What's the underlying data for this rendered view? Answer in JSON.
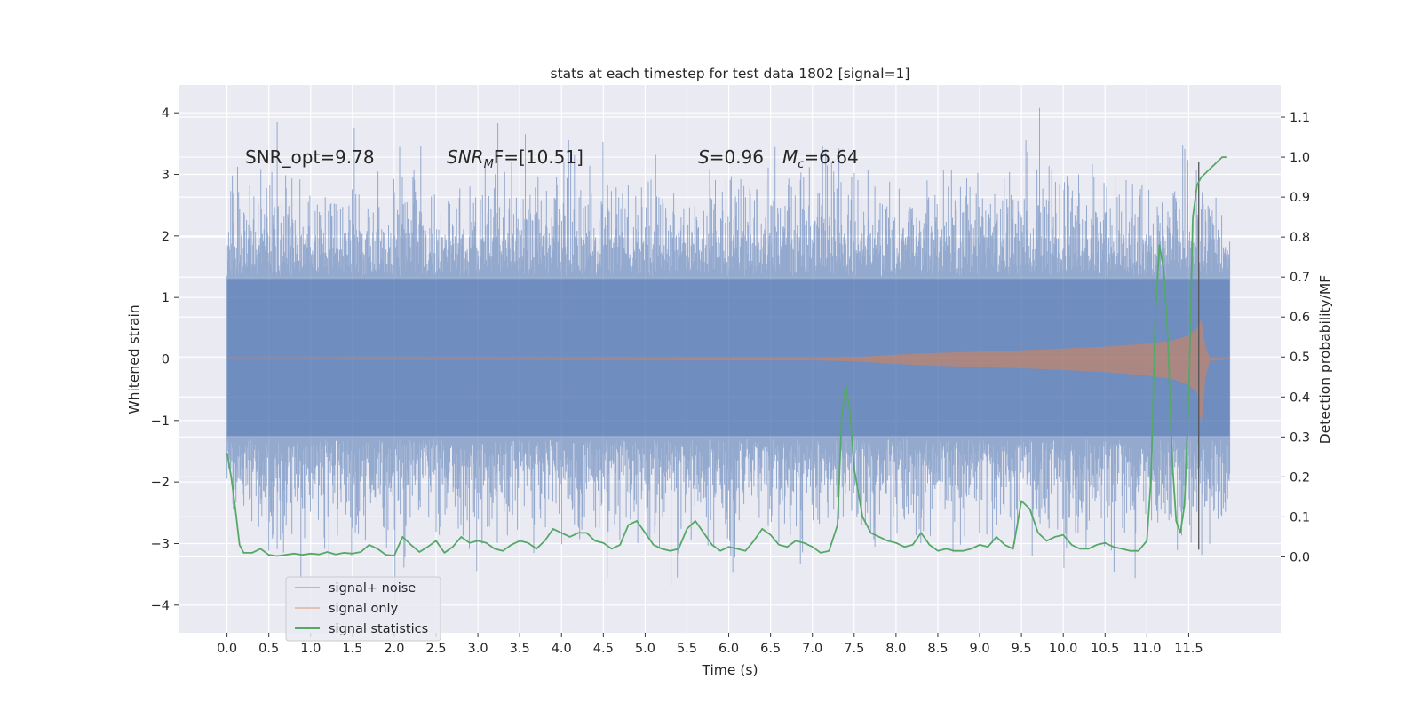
{
  "chart_data": {
    "type": "line",
    "title": "stats at each timestep for test data 1802 [signal=1]",
    "xlabel": "Time (s)",
    "ylabel": "Whitened strain",
    "y2label": "Detection probability/MF",
    "xlim": [
      -0.58,
      12.6
    ],
    "ylim": [
      -4.45,
      4.45
    ],
    "y2lim": [
      -0.19,
      1.18
    ],
    "x_ticks": [
      0.0,
      0.5,
      1.0,
      1.5,
      2.0,
      2.5,
      3.0,
      3.5,
      4.0,
      4.5,
      5.0,
      5.5,
      6.0,
      6.5,
      7.0,
      7.5,
      8.0,
      8.5,
      9.0,
      9.5,
      10.0,
      10.5,
      11.0,
      11.5
    ],
    "x_tick_labels": [
      "0.0",
      "0.5",
      "1.0",
      "1.5",
      "2.0",
      "2.5",
      "3.0",
      "3.5",
      "4.0",
      "4.5",
      "5.0",
      "5.5",
      "6.0",
      "6.5",
      "7.0",
      "7.5",
      "8.0",
      "8.5",
      "9.0",
      "9.5",
      "10.0",
      "10.5",
      "11.0",
      "11.5"
    ],
    "y_ticks": [
      -4,
      -3,
      -2,
      -1,
      0,
      1,
      2,
      3,
      4
    ],
    "y_tick_labels": [
      "−4",
      "−3",
      "−2",
      "−1",
      "0",
      "1",
      "2",
      "3",
      "4"
    ],
    "y2_ticks": [
      0.0,
      0.1,
      0.2,
      0.3,
      0.4,
      0.5,
      0.6,
      0.7,
      0.8,
      0.9,
      1.0,
      1.1
    ],
    "y2_tick_labels": [
      "0.0",
      "0.1",
      "0.2",
      "0.3",
      "0.4",
      "0.5",
      "0.6",
      "0.7",
      "0.8",
      "0.9",
      "1.0",
      "1.1"
    ],
    "grid": true,
    "legend_position": "lower-left",
    "colors": {
      "background": "#eaeaf2",
      "grid": "#ffffff",
      "noise": "#4c72b0",
      "signal": "#dd8452",
      "statistics": "#55a868",
      "marker": "#555555"
    },
    "annotations": {
      "snr_opt": "SNR_opt=9.78",
      "snr_mf_main": "SNR",
      "snr_mf_sub": "M",
      "snr_mf_rest": "F=[10.51]",
      "s_sym": "S",
      "s_val": "=0.96",
      "mc_sym": "M",
      "mc_sub": "c",
      "mc_val": "=6.64"
    },
    "series": [
      {
        "name": "signal+ noise",
        "style": "dense noise band",
        "t_range": [
          0.0,
          11.99
        ],
        "core_band": [
          -1.25,
          1.3
        ],
        "approx_extremes": {
          "max": 4.08,
          "min": -3.98
        }
      },
      {
        "name": "signal only",
        "style": "chirp envelope",
        "t_range": [
          0.0,
          11.99
        ],
        "envelope": {
          "x": [
            0.0,
            6.0,
            7.0,
            7.5,
            8.0,
            8.5,
            9.0,
            9.5,
            10.0,
            10.5,
            11.0,
            11.3,
            11.5,
            11.6,
            11.65,
            11.7,
            11.75,
            11.99
          ],
          "upper": [
            0.01,
            0.02,
            0.02,
            0.03,
            0.07,
            0.1,
            0.12,
            0.14,
            0.17,
            0.2,
            0.25,
            0.3,
            0.38,
            0.5,
            0.65,
            0.2,
            0.02,
            0.01
          ],
          "lower": [
            -0.01,
            -0.02,
            -0.02,
            -0.04,
            -0.08,
            -0.11,
            -0.13,
            -0.15,
            -0.18,
            -0.21,
            -0.27,
            -0.32,
            -0.42,
            -0.55,
            -1.1,
            -0.3,
            -0.03,
            -0.01
          ]
        }
      },
      {
        "name": "signal statistics",
        "axis": "right",
        "x": [
          0.0,
          0.05,
          0.1,
          0.15,
          0.2,
          0.25,
          0.3,
          0.4,
          0.5,
          0.6,
          0.7,
          0.8,
          0.9,
          1.0,
          1.1,
          1.2,
          1.3,
          1.4,
          1.5,
          1.6,
          1.7,
          1.8,
          1.9,
          2.0,
          2.1,
          2.2,
          2.3,
          2.4,
          2.5,
          2.6,
          2.7,
          2.8,
          2.9,
          3.0,
          3.1,
          3.2,
          3.3,
          3.4,
          3.5,
          3.6,
          3.7,
          3.8,
          3.9,
          4.0,
          4.1,
          4.2,
          4.3,
          4.4,
          4.5,
          4.6,
          4.7,
          4.8,
          4.9,
          5.0,
          5.1,
          5.2,
          5.3,
          5.4,
          5.5,
          5.6,
          5.7,
          5.8,
          5.9,
          6.0,
          6.1,
          6.2,
          6.3,
          6.4,
          6.5,
          6.6,
          6.7,
          6.8,
          6.9,
          7.0,
          7.1,
          7.2,
          7.3,
          7.35,
          7.4,
          7.45,
          7.5,
          7.6,
          7.7,
          7.8,
          7.9,
          8.0,
          8.1,
          8.2,
          8.3,
          8.4,
          8.5,
          8.6,
          8.7,
          8.8,
          8.9,
          9.0,
          9.1,
          9.2,
          9.3,
          9.4,
          9.5,
          9.6,
          9.7,
          9.8,
          9.9,
          10.0,
          10.1,
          10.2,
          10.3,
          10.4,
          10.5,
          10.6,
          10.7,
          10.8,
          10.9,
          11.0,
          11.05,
          11.1,
          11.15,
          11.2,
          11.25,
          11.3,
          11.35,
          11.4,
          11.45,
          11.5,
          11.55,
          11.6,
          11.65,
          11.7,
          11.8,
          11.9,
          11.95
        ],
        "values": [
          0.26,
          0.2,
          0.12,
          0.03,
          0.01,
          0.01,
          0.01,
          0.02,
          0.005,
          0.002,
          0.005,
          0.008,
          0.005,
          0.008,
          0.006,
          0.012,
          0.006,
          0.01,
          0.008,
          0.012,
          0.03,
          0.02,
          0.005,
          0.003,
          0.05,
          0.03,
          0.012,
          0.025,
          0.04,
          0.01,
          0.025,
          0.05,
          0.035,
          0.04,
          0.035,
          0.02,
          0.015,
          0.03,
          0.04,
          0.035,
          0.02,
          0.04,
          0.07,
          0.06,
          0.05,
          0.06,
          0.06,
          0.04,
          0.035,
          0.02,
          0.03,
          0.08,
          0.09,
          0.06,
          0.03,
          0.02,
          0.015,
          0.02,
          0.07,
          0.09,
          0.06,
          0.03,
          0.015,
          0.025,
          0.02,
          0.015,
          0.04,
          0.07,
          0.055,
          0.03,
          0.025,
          0.04,
          0.035,
          0.025,
          0.01,
          0.015,
          0.08,
          0.35,
          0.43,
          0.36,
          0.22,
          0.1,
          0.06,
          0.05,
          0.04,
          0.035,
          0.025,
          0.03,
          0.06,
          0.03,
          0.015,
          0.02,
          0.015,
          0.015,
          0.02,
          0.03,
          0.025,
          0.05,
          0.03,
          0.02,
          0.14,
          0.12,
          0.06,
          0.04,
          0.05,
          0.055,
          0.03,
          0.02,
          0.02,
          0.03,
          0.035,
          0.025,
          0.02,
          0.015,
          0.015,
          0.04,
          0.2,
          0.6,
          0.78,
          0.72,
          0.55,
          0.25,
          0.09,
          0.06,
          0.13,
          0.4,
          0.85,
          0.93,
          0.95,
          0.96,
          0.98,
          1.0,
          1.0
        ]
      }
    ],
    "marker_line": {
      "x": 11.62,
      "y_top": 3.2,
      "y_bottom": -3.1
    },
    "legend": [
      "signal+ noise",
      "signal only",
      "signal statistics"
    ]
  }
}
